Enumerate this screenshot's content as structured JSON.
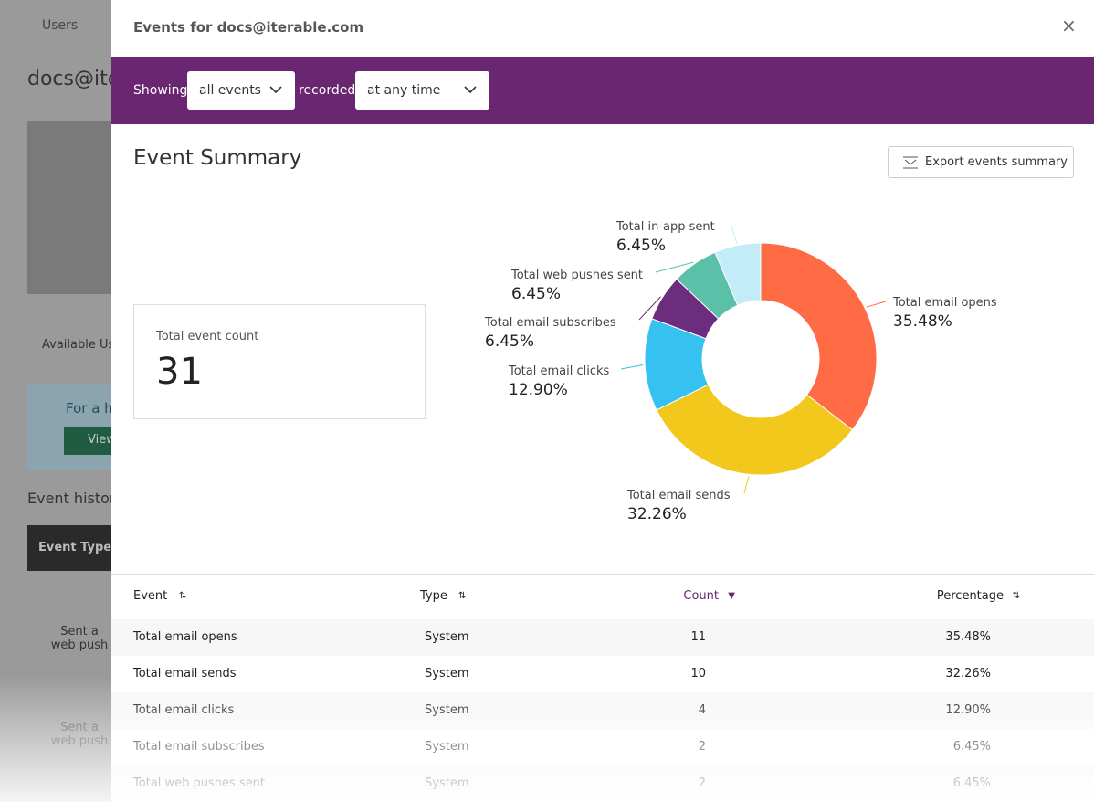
{
  "background": {
    "breadcrumb": "Users",
    "user": "docs@ite",
    "tab": "Available Us",
    "info": "For a h",
    "button": "View",
    "section": "Event histor",
    "table_header": "Event Type",
    "rows": [
      "Sent a web push",
      "Sent a web push"
    ]
  },
  "modal": {
    "title": "Events for docs@iterable.com",
    "showing": "Showing",
    "event_select": "all events",
    "recorded": "recorded",
    "time_select": "at any time",
    "summary_title": "Event Summary",
    "export": "Export events summary",
    "count_label": "Total event count",
    "count": 31
  },
  "chart_data": {
    "type": "pie",
    "donut": true,
    "categories": [
      "Total email opens",
      "Total email sends",
      "Total email clicks",
      "Total email subscribes",
      "Total web pushes sent",
      "Total in-app sent"
    ],
    "values": [
      35.48,
      32.26,
      12.9,
      6.45,
      6.45,
      6.45
    ],
    "value_labels": [
      "35.48%",
      "32.26%",
      "12.90%",
      "6.45%",
      "6.45%",
      "6.45%"
    ],
    "colors": [
      "#ff6b45",
      "#f2c81d",
      "#35c2f0",
      "#6d2d7f",
      "#5bc0a8",
      "#c3ecf9"
    ]
  },
  "table": {
    "columns": [
      "Event",
      "Type",
      "Count",
      "Percentage"
    ],
    "rows": [
      [
        "Total email opens",
        "System",
        11,
        "35.48%"
      ],
      [
        "Total email sends",
        "System",
        10,
        "32.26%"
      ],
      [
        "Total email clicks",
        "System",
        4,
        "12.90%"
      ],
      [
        "Total email subscribes",
        "System",
        2,
        "6.45%"
      ],
      [
        "Total web pushes sent",
        "System",
        2,
        "6.45%"
      ]
    ]
  }
}
